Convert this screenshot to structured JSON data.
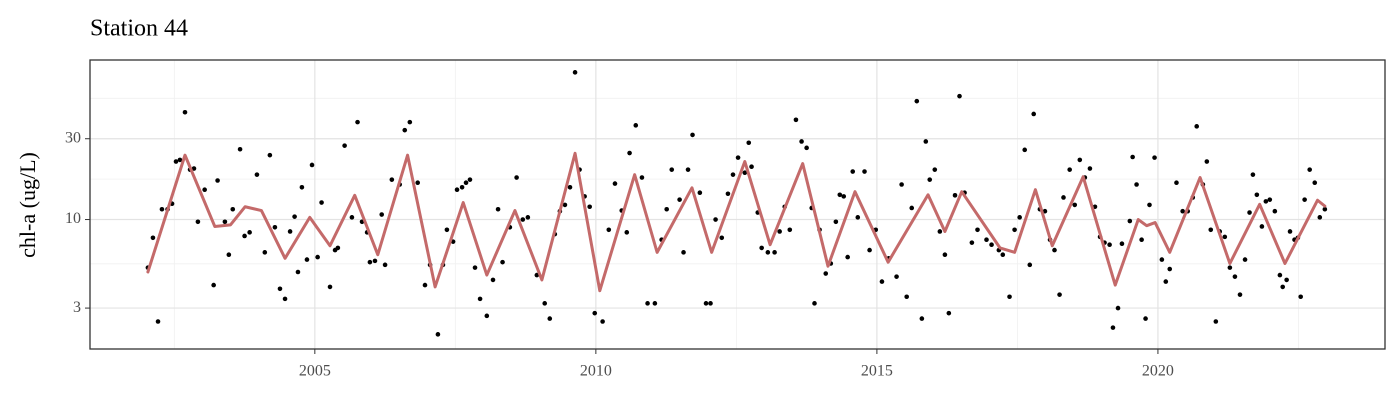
{
  "chart_data": {
    "type": "scatter",
    "title": "Station 44",
    "y_label": "chl-a (ug/L)",
    "xlim": [
      2001.0,
      2024.04
    ],
    "xticks": [
      2005,
      2010,
      2015,
      2020
    ],
    "ylim": [
      1.72,
      87.5
    ],
    "yticks": [
      3,
      10,
      30
    ],
    "log_y": true,
    "grid": true,
    "series": [
      {
        "type": "scatter",
        "color": "#000000",
        "x": [
          2002.03,
          2002.12,
          2002.21,
          2002.28,
          2002.38,
          2002.46,
          2002.53,
          2002.6,
          2002.69,
          2002.78,
          2002.85,
          2002.92,
          2003.04,
          2003.2,
          2003.27,
          2003.4,
          2003.47,
          2003.54,
          2003.67,
          2003.75,
          2003.84,
          2003.97,
          2004.11,
          2004.2,
          2004.29,
          2004.38,
          2004.47,
          2004.56,
          2004.64,
          2004.7,
          2004.77,
          2004.86,
          2004.95,
          2005.05,
          2005.12,
          2005.27,
          2005.36,
          2005.41,
          2005.53,
          2005.66,
          2005.76,
          2005.84,
          2005.93,
          2005.98,
          2006.07,
          2006.19,
          2006.25,
          2006.37,
          2006.51,
          2006.6,
          2006.69,
          2006.83,
          2006.96,
          2007.05,
          2007.19,
          2007.28,
          2007.35,
          2007.46,
          2007.53,
          2007.62,
          2007.69,
          2007.76,
          2007.85,
          2007.94,
          2008.06,
          2008.17,
          2008.26,
          2008.34,
          2008.47,
          2008.59,
          2008.7,
          2008.79,
          2008.95,
          2009.09,
          2009.18,
          2009.27,
          2009.36,
          2009.45,
          2009.54,
          2009.63,
          2009.71,
          2009.8,
          2009.89,
          2009.98,
          2010.12,
          2010.23,
          2010.34,
          2010.46,
          2010.55,
          2010.6,
          2010.71,
          2010.82,
          2010.92,
          2011.05,
          2011.17,
          2011.26,
          2011.35,
          2011.49,
          2011.56,
          2011.64,
          2011.72,
          2011.85,
          2011.96,
          2012.04,
          2012.13,
          2012.24,
          2012.35,
          2012.44,
          2012.53,
          2012.65,
          2012.72,
          2012.77,
          2012.88,
          2012.95,
          2013.06,
          2013.18,
          2013.27,
          2013.36,
          2013.45,
          2013.56,
          2013.66,
          2013.75,
          2013.84,
          2013.89,
          2013.98,
          2014.09,
          2014.18,
          2014.27,
          2014.34,
          2014.41,
          2014.48,
          2014.57,
          2014.66,
          2014.78,
          2014.87,
          2014.98,
          2015.09,
          2015.21,
          2015.35,
          2015.44,
          2015.53,
          2015.62,
          2015.71,
          2015.8,
          2015.87,
          2015.94,
          2016.03,
          2016.12,
          2016.21,
          2016.28,
          2016.39,
          2016.47,
          2016.56,
          2016.69,
          2016.79,
          2016.95,
          2017.04,
          2017.17,
          2017.24,
          2017.36,
          2017.45,
          2017.54,
          2017.63,
          2017.72,
          2017.79,
          2017.9,
          2017.99,
          2018.08,
          2018.16,
          2018.25,
          2018.32,
          2018.43,
          2018.52,
          2018.61,
          2018.7,
          2018.79,
          2018.88,
          2018.97,
          2019.05,
          2019.14,
          2019.2,
          2019.29,
          2019.36,
          2019.5,
          2019.55,
          2019.62,
          2019.71,
          2019.78,
          2019.85,
          2019.94,
          2020.07,
          2020.14,
          2020.21,
          2020.33,
          2020.44,
          2020.53,
          2020.62,
          2020.69,
          2020.8,
          2020.87,
          2020.94,
          2021.03,
          2021.1,
          2021.19,
          2021.28,
          2021.37,
          2021.46,
          2021.55,
          2021.63,
          2021.69,
          2021.76,
          2021.85,
          2021.92,
          2021.99,
          2022.08,
          2022.17,
          2022.22,
          2022.29,
          2022.35,
          2022.43,
          2022.49,
          2022.54,
          2022.61,
          2022.7,
          2022.79,
          2022.88,
          2022.97
        ],
        "values": [
          5.2,
          7.8,
          2.5,
          11.5,
          11.5,
          12.4,
          22,
          22.5,
          43,
          19.7,
          20,
          9.7,
          15,
          4.1,
          17,
          9.7,
          6.2,
          11.5,
          26,
          8,
          8.4,
          18.4,
          6.4,
          24,
          9,
          3.9,
          3.4,
          8.5,
          10.4,
          4.9,
          15.5,
          5.8,
          21,
          6,
          12.6,
          4,
          6.6,
          6.8,
          27.3,
          10.3,
          37.6,
          9.7,
          8.4,
          5.6,
          5.7,
          10.7,
          5.4,
          17.2,
          16.1,
          33.7,
          37.6,
          16.5,
          4.1,
          5.4,
          2.1,
          5.4,
          8.7,
          7.4,
          15,
          15.5,
          16.5,
          17.2,
          5.2,
          3.4,
          2.7,
          4.4,
          11.5,
          5.6,
          9,
          17.7,
          10,
          10.3,
          4.7,
          3.2,
          2.6,
          8.2,
          11.2,
          12.2,
          15.5,
          74,
          19.7,
          13.7,
          11.9,
          2.8,
          2.5,
          8.7,
          16.3,
          11.3,
          8.4,
          24.7,
          36,
          17.7,
          3.2,
          3.2,
          7.6,
          11.5,
          19.7,
          13.1,
          6.4,
          19.7,
          31.6,
          14.4,
          3.2,
          3.2,
          10,
          7.8,
          14.2,
          18.4,
          23.2,
          18.9,
          28.4,
          20.5,
          11,
          6.8,
          6.4,
          6.4,
          8.5,
          11.9,
          8.7,
          38.8,
          28.9,
          26.5,
          11.7,
          3.2,
          8.7,
          4.8,
          5.5,
          9.7,
          14,
          13.7,
          6,
          19.2,
          10.3,
          19.2,
          6.6,
          8.7,
          4.3,
          5.9,
          4.6,
          16.1,
          3.5,
          11.7,
          50,
          2.6,
          28.9,
          17.2,
          19.7,
          8.5,
          6.2,
          2.8,
          13.9,
          53.5,
          14.4,
          7.3,
          8.7,
          7.6,
          7.1,
          6.6,
          6.2,
          3.5,
          8.7,
          10.3,
          25.8,
          5.4,
          42,
          11.5,
          11.2,
          7.6,
          6.6,
          3.6,
          13.5,
          19.7,
          12.2,
          22.5,
          17.7,
          20,
          11.9,
          7.9,
          7.3,
          7.1,
          2.3,
          3,
          7.2,
          9.8,
          23.4,
          16.1,
          7.6,
          2.6,
          12.2,
          23.2,
          5.8,
          4.3,
          5.1,
          16.5,
          11.2,
          11.2,
          13.5,
          35.5,
          16.1,
          22,
          8.7,
          2.5,
          8.5,
          7.9,
          5.2,
          4.6,
          3.6,
          5.8,
          11,
          18.4,
          14,
          9.1,
          12.8,
          13.1,
          11.2,
          4.7,
          4,
          4.4,
          8.5,
          7.6,
          7.8,
          3.5,
          13.1,
          19.7,
          16.5,
          10.3,
          11.5
        ]
      },
      {
        "type": "line",
        "color": "#c46a6a",
        "x": [
          2002.03,
          2002.69,
          2003.22,
          2003.5,
          2003.76,
          2004.05,
          2004.47,
          2004.91,
          2005.27,
          2005.71,
          2006.12,
          2006.65,
          2007.14,
          2007.64,
          2008.06,
          2008.56,
          2009.04,
          2009.63,
          2010.07,
          2010.69,
          2011.09,
          2011.71,
          2012.06,
          2012.65,
          2013.1,
          2013.68,
          2014.13,
          2014.61,
          2015.2,
          2015.91,
          2016.21,
          2016.51,
          2017.19,
          2017.45,
          2017.82,
          2018.12,
          2018.67,
          2019.24,
          2019.65,
          2019.8,
          2019.95,
          2020.21,
          2020.75,
          2021.28,
          2021.81,
          2022.26,
          2022.84,
          2022.97
        ],
        "values": [
          4.9,
          24,
          9.1,
          9.3,
          11.9,
          11.3,
          5.9,
          10.3,
          7,
          13.9,
          6.2,
          24,
          4,
          12.6,
          4.7,
          11.3,
          4.4,
          24.6,
          3.8,
          18.4,
          6.4,
          15.4,
          6.4,
          22,
          7.1,
          21.4,
          5.3,
          14.6,
          5.6,
          14,
          8.5,
          14.6,
          6.8,
          6.4,
          15,
          7,
          17.9,
          4.1,
          10,
          9.2,
          9.6,
          6.4,
          17.7,
          5.5,
          12.3,
          5.5,
          13,
          12
        ]
      }
    ]
  }
}
